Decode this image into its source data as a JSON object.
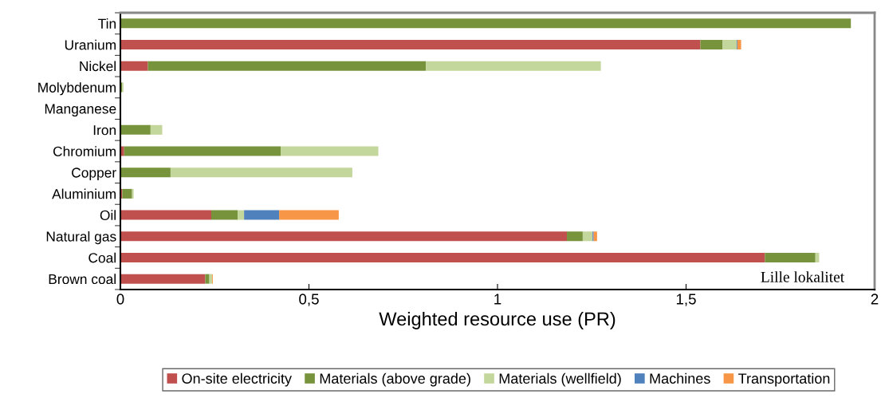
{
  "chart_data": {
    "type": "bar",
    "orientation": "horizontal",
    "stacked": true,
    "categories": [
      "Tin",
      "Uranium",
      "Nickel",
      "Molybdenum",
      "Manganese",
      "Iron",
      "Chromium",
      "Copper",
      "Aluminium",
      "Oil",
      "Natural gas",
      "Coal",
      "Brown coal"
    ],
    "series": [
      {
        "name": "On-site electricity",
        "color": "#c0504d",
        "values": [
          0,
          1.538,
          0.073,
          0,
          0,
          0,
          0.01,
          0,
          0.005,
          0.241,
          1.184,
          1.709,
          0.225
        ]
      },
      {
        "name": "Materials (above grade)",
        "color": "#77933c",
        "values": [
          1.937,
          0.059,
          0.737,
          0.005,
          0,
          0.08,
          0.415,
          0.133,
          0.026,
          0.07,
          0.042,
          0.134,
          0.011
        ]
      },
      {
        "name": "Materials (wellfield)",
        "color": "#c3d69b",
        "values": [
          0,
          0.037,
          0.464,
          0.003,
          0,
          0.031,
          0.259,
          0.482,
          0.004,
          0.017,
          0.026,
          0.01,
          0.007
        ]
      },
      {
        "name": "Machines",
        "color": "#4f81bd",
        "values": [
          0,
          0.002,
          0,
          0,
          0,
          0,
          0,
          0,
          0,
          0.093,
          0.003,
          0,
          0
        ]
      },
      {
        "name": "Transportation",
        "color": "#f79646",
        "values": [
          0,
          0.01,
          0,
          0,
          0,
          0,
          0,
          0,
          0,
          0.158,
          0.009,
          0,
          0.002
        ]
      }
    ],
    "xlim": [
      0,
      2
    ],
    "xticks": [
      0,
      {
        "value": 0.5,
        "label": "0,5"
      },
      1,
      {
        "value": 1.5,
        "label": "1,5"
      },
      2
    ],
    "xlabel": "Weighted resource use (PR)",
    "annotations": [
      "Lille lokalitet"
    ],
    "legend": "bottom",
    "grid": false
  }
}
